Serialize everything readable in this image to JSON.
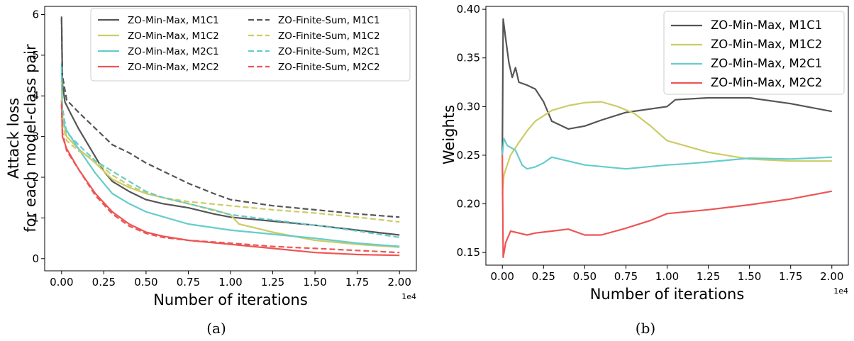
{
  "chart_data": [
    {
      "type": "line",
      "caption": "(a)",
      "xlabel": "Number of iterations",
      "ylabel_lines": [
        "Attack loss",
        "for each model-class pair"
      ],
      "x_offset_label": "1e4",
      "xlim": [
        -0.1,
        2.1
      ],
      "ylim": [
        -0.3,
        6.2
      ],
      "xticks": [
        0,
        0.25,
        0.5,
        0.75,
        1.0,
        1.25,
        1.5,
        1.75,
        2.0
      ],
      "xtick_labels": [
        "0.00",
        "0.25",
        "0.50",
        "0.75",
        "1.00",
        "1.25",
        "1.50",
        "1.75",
        "2.00"
      ],
      "yticks": [
        0,
        1,
        2,
        3,
        4,
        5,
        6
      ],
      "ytick_labels": [
        "0",
        "1",
        "2",
        "3",
        "4",
        "5",
        "6"
      ],
      "legend_position": "top-right",
      "legend_columns": 2,
      "series": [
        {
          "name": "ZO-Min-Max, M1C1",
          "color": "#555555",
          "dash": "solid",
          "points": [
            [
              0,
              5.95
            ],
            [
              0.005,
              4.3
            ],
            [
              0.02,
              3.85
            ],
            [
              0.05,
              3.6
            ],
            [
              0.1,
              3.2
            ],
            [
              0.15,
              2.85
            ],
            [
              0.2,
              2.5
            ],
            [
              0.25,
              2.15
            ],
            [
              0.3,
              1.9
            ],
            [
              0.4,
              1.65
            ],
            [
              0.5,
              1.45
            ],
            [
              0.6,
              1.35
            ],
            [
              0.75,
              1.25
            ],
            [
              0.9,
              1.1
            ],
            [
              1.0,
              1.02
            ],
            [
              1.25,
              0.92
            ],
            [
              1.5,
              0.82
            ],
            [
              1.75,
              0.7
            ],
            [
              2.0,
              0.58
            ]
          ]
        },
        {
          "name": "ZO-Min-Max, M1C2",
          "color": "#cccc66",
          "dash": "solid",
          "points": [
            [
              0,
              4.6
            ],
            [
              0.005,
              3.5
            ],
            [
              0.03,
              3.0
            ],
            [
              0.1,
              2.7
            ],
            [
              0.2,
              2.35
            ],
            [
              0.3,
              1.95
            ],
            [
              0.4,
              1.75
            ],
            [
              0.5,
              1.6
            ],
            [
              0.75,
              1.35
            ],
            [
              0.9,
              1.2
            ],
            [
              1.0,
              1.08
            ],
            [
              1.05,
              0.85
            ],
            [
              1.25,
              0.65
            ],
            [
              1.5,
              0.45
            ],
            [
              1.75,
              0.35
            ],
            [
              2.0,
              0.28
            ]
          ]
        },
        {
          "name": "ZO-Min-Max, M2C1",
          "color": "#66cccc",
          "dash": "solid",
          "points": [
            [
              0,
              4.8
            ],
            [
              0.005,
              3.4
            ],
            [
              0.03,
              3.15
            ],
            [
              0.1,
              2.7
            ],
            [
              0.2,
              2.1
            ],
            [
              0.3,
              1.6
            ],
            [
              0.4,
              1.35
            ],
            [
              0.5,
              1.15
            ],
            [
              0.75,
              0.85
            ],
            [
              1.0,
              0.7
            ],
            [
              1.25,
              0.6
            ],
            [
              1.5,
              0.5
            ],
            [
              1.75,
              0.38
            ],
            [
              2.0,
              0.3
            ]
          ]
        },
        {
          "name": "ZO-Min-Max, M2C2",
          "color": "#ee5555",
          "dash": "solid",
          "points": [
            [
              0,
              3.9
            ],
            [
              0.005,
              3.0
            ],
            [
              0.03,
              2.7
            ],
            [
              0.1,
              2.2
            ],
            [
              0.2,
              1.6
            ],
            [
              0.3,
              1.15
            ],
            [
              0.4,
              0.85
            ],
            [
              0.5,
              0.65
            ],
            [
              0.6,
              0.55
            ],
            [
              0.75,
              0.45
            ],
            [
              1.0,
              0.35
            ],
            [
              1.25,
              0.25
            ],
            [
              1.5,
              0.15
            ],
            [
              1.75,
              0.1
            ],
            [
              2.0,
              0.08
            ]
          ]
        },
        {
          "name": "ZO-Finite-Sum, M1C1",
          "color": "#555555",
          "dash": "dashed",
          "points": [
            [
              0,
              5.9
            ],
            [
              0.005,
              4.5
            ],
            [
              0.03,
              3.9
            ],
            [
              0.1,
              3.6
            ],
            [
              0.2,
              3.2
            ],
            [
              0.3,
              2.8
            ],
            [
              0.4,
              2.6
            ],
            [
              0.5,
              2.35
            ],
            [
              0.6,
              2.15
            ],
            [
              0.75,
              1.85
            ],
            [
              0.9,
              1.6
            ],
            [
              1.0,
              1.45
            ],
            [
              1.25,
              1.3
            ],
            [
              1.5,
              1.2
            ],
            [
              1.75,
              1.1
            ],
            [
              2.0,
              1.02
            ]
          ]
        },
        {
          "name": "ZO-Finite-Sum, M1C2",
          "color": "#cccc66",
          "dash": "dashed",
          "points": [
            [
              0,
              4.4
            ],
            [
              0.005,
              3.3
            ],
            [
              0.03,
              2.9
            ],
            [
              0.1,
              2.65
            ],
            [
              0.2,
              2.4
            ],
            [
              0.3,
              2.05
            ],
            [
              0.4,
              1.8
            ],
            [
              0.5,
              1.62
            ],
            [
              0.6,
              1.5
            ],
            [
              0.75,
              1.4
            ],
            [
              1.0,
              1.3
            ],
            [
              1.25,
              1.2
            ],
            [
              1.5,
              1.12
            ],
            [
              1.75,
              1.02
            ],
            [
              2.0,
              0.9
            ]
          ]
        },
        {
          "name": "ZO-Finite-Sum, M2C1",
          "color": "#66cccc",
          "dash": "dashed",
          "points": [
            [
              0,
              4.7
            ],
            [
              0.005,
              3.7
            ],
            [
              0.03,
              3.1
            ],
            [
              0.1,
              2.8
            ],
            [
              0.2,
              2.4
            ],
            [
              0.3,
              2.15
            ],
            [
              0.4,
              1.9
            ],
            [
              0.5,
              1.65
            ],
            [
              0.6,
              1.5
            ],
            [
              0.75,
              1.35
            ],
            [
              1.0,
              1.08
            ],
            [
              1.25,
              0.95
            ],
            [
              1.5,
              0.82
            ],
            [
              1.75,
              0.68
            ],
            [
              2.0,
              0.52
            ]
          ]
        },
        {
          "name": "ZO-Finite-Sum, M2C2",
          "color": "#ee5555",
          "dash": "dashed",
          "points": [
            [
              0,
              3.8
            ],
            [
              0.005,
              3.1
            ],
            [
              0.03,
              2.65
            ],
            [
              0.1,
              2.2
            ],
            [
              0.2,
              1.55
            ],
            [
              0.3,
              1.1
            ],
            [
              0.4,
              0.8
            ],
            [
              0.5,
              0.62
            ],
            [
              0.6,
              0.52
            ],
            [
              0.75,
              0.45
            ],
            [
              1.0,
              0.38
            ],
            [
              1.25,
              0.3
            ],
            [
              1.5,
              0.25
            ],
            [
              1.75,
              0.2
            ],
            [
              2.0,
              0.15
            ]
          ]
        }
      ]
    },
    {
      "type": "line",
      "caption": "(b)",
      "xlabel": "Number of iterations",
      "ylabel_lines": [
        "Weights"
      ],
      "x_offset_label": "1e4",
      "xlim": [
        -0.1,
        2.1
      ],
      "ylim": [
        0.137,
        0.403
      ],
      "xticks": [
        0,
        0.25,
        0.5,
        0.75,
        1.0,
        1.25,
        1.5,
        1.75,
        2.0
      ],
      "xtick_labels": [
        "0.00",
        "0.25",
        "0.50",
        "0.75",
        "1.00",
        "1.25",
        "1.50",
        "1.75",
        "2.00"
      ],
      "yticks": [
        0.15,
        0.2,
        0.25,
        0.3,
        0.35,
        0.4
      ],
      "ytick_labels": [
        "0.15",
        "0.20",
        "0.25",
        "0.30",
        "0.35",
        "0.40"
      ],
      "legend_position": "top-right",
      "legend_columns": 1,
      "series": [
        {
          "name": "ZO-Min-Max, M1C1",
          "color": "#555555",
          "dash": "solid",
          "points": [
            [
              0,
              0.25
            ],
            [
              0.005,
              0.39
            ],
            [
              0.02,
              0.37
            ],
            [
              0.04,
              0.345
            ],
            [
              0.06,
              0.33
            ],
            [
              0.08,
              0.34
            ],
            [
              0.1,
              0.325
            ],
            [
              0.15,
              0.322
            ],
            [
              0.2,
              0.318
            ],
            [
              0.25,
              0.305
            ],
            [
              0.3,
              0.285
            ],
            [
              0.4,
              0.277
            ],
            [
              0.5,
              0.28
            ],
            [
              0.6,
              0.286
            ],
            [
              0.75,
              0.294
            ],
            [
              1.0,
              0.3
            ],
            [
              1.05,
              0.307
            ],
            [
              1.25,
              0.309
            ],
            [
              1.5,
              0.309
            ],
            [
              1.75,
              0.303
            ],
            [
              2.0,
              0.295
            ]
          ]
        },
        {
          "name": "ZO-Min-Max, M1C2",
          "color": "#cccc66",
          "dash": "solid",
          "points": [
            [
              0,
              0.21
            ],
            [
              0.01,
              0.23
            ],
            [
              0.05,
              0.25
            ],
            [
              0.1,
              0.263
            ],
            [
              0.15,
              0.275
            ],
            [
              0.2,
              0.285
            ],
            [
              0.3,
              0.296
            ],
            [
              0.4,
              0.301
            ],
            [
              0.5,
              0.304
            ],
            [
              0.6,
              0.305
            ],
            [
              0.7,
              0.3
            ],
            [
              0.8,
              0.293
            ],
            [
              0.9,
              0.28
            ],
            [
              1.0,
              0.265
            ],
            [
              1.25,
              0.253
            ],
            [
              1.5,
              0.246
            ],
            [
              1.75,
              0.244
            ],
            [
              2.0,
              0.244
            ]
          ]
        },
        {
          "name": "ZO-Min-Max, M2C1",
          "color": "#66cccc",
          "dash": "solid",
          "points": [
            [
              0,
              0.25
            ],
            [
              0.01,
              0.267
            ],
            [
              0.03,
              0.26
            ],
            [
              0.08,
              0.255
            ],
            [
              0.12,
              0.24
            ],
            [
              0.15,
              0.236
            ],
            [
              0.2,
              0.238
            ],
            [
              0.25,
              0.242
            ],
            [
              0.3,
              0.248
            ],
            [
              0.4,
              0.244
            ],
            [
              0.5,
              0.24
            ],
            [
              0.75,
              0.236
            ],
            [
              1.0,
              0.24
            ],
            [
              1.1,
              0.241
            ],
            [
              1.25,
              0.243
            ],
            [
              1.5,
              0.247
            ],
            [
              1.75,
              0.246
            ],
            [
              2.0,
              0.248
            ]
          ]
        },
        {
          "name": "ZO-Min-Max, M2C2",
          "color": "#ee5555",
          "dash": "solid",
          "points": [
            [
              0,
              0.25
            ],
            [
              0.005,
              0.145
            ],
            [
              0.02,
              0.16
            ],
            [
              0.05,
              0.172
            ],
            [
              0.1,
              0.17
            ],
            [
              0.15,
              0.168
            ],
            [
              0.2,
              0.17
            ],
            [
              0.3,
              0.172
            ],
            [
              0.4,
              0.174
            ],
            [
              0.5,
              0.168
            ],
            [
              0.6,
              0.168
            ],
            [
              0.75,
              0.175
            ],
            [
              0.9,
              0.183
            ],
            [
              1.0,
              0.19
            ],
            [
              1.25,
              0.194
            ],
            [
              1.5,
              0.199
            ],
            [
              1.75,
              0.205
            ],
            [
              2.0,
              0.213
            ]
          ]
        }
      ]
    }
  ]
}
